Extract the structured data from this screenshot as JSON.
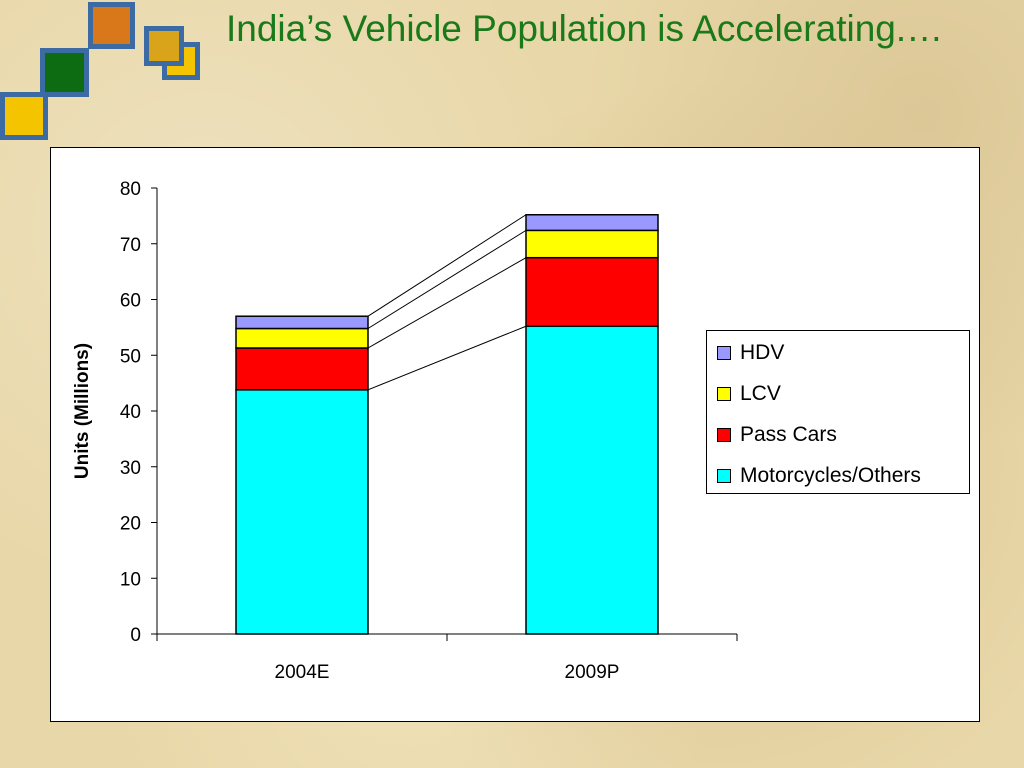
{
  "slide": {
    "title": "India’s Vehicle Population is Accelerating.…"
  },
  "decor": {
    "squares": [
      {
        "name": "deco-square-orange",
        "color": "#d9781a"
      },
      {
        "name": "deco-square-green",
        "color": "#0d6b12"
      },
      {
        "name": "deco-square-yellow-small",
        "color": "#f5c400"
      },
      {
        "name": "deco-square-gold",
        "color": "#d9a41a"
      },
      {
        "name": "deco-square-yellow-large",
        "color": "#f5c400"
      }
    ]
  },
  "chart_data": {
    "type": "bar",
    "stacked": true,
    "categories": [
      "2004E",
      "2009P"
    ],
    "series": [
      {
        "name": "Motorcycles/Others",
        "color": "#00ffff",
        "values": [
          43.8,
          55.2
        ]
      },
      {
        "name": "Pass Cars",
        "color": "#ff0000",
        "values": [
          7.5,
          12.3
        ]
      },
      {
        "name": "LCV",
        "color": "#ffff00",
        "values": [
          3.5,
          4.9
        ]
      },
      {
        "name": "HDV",
        "color": "#9999ff",
        "values": [
          2.2,
          2.8
        ]
      }
    ],
    "ylabel": "Units (Millions)",
    "ylim": [
      0,
      80
    ],
    "yticks": [
      0,
      10,
      20,
      30,
      40,
      50,
      60,
      70,
      80
    ],
    "legend_position": "right",
    "series_lines": true,
    "grid": false
  }
}
